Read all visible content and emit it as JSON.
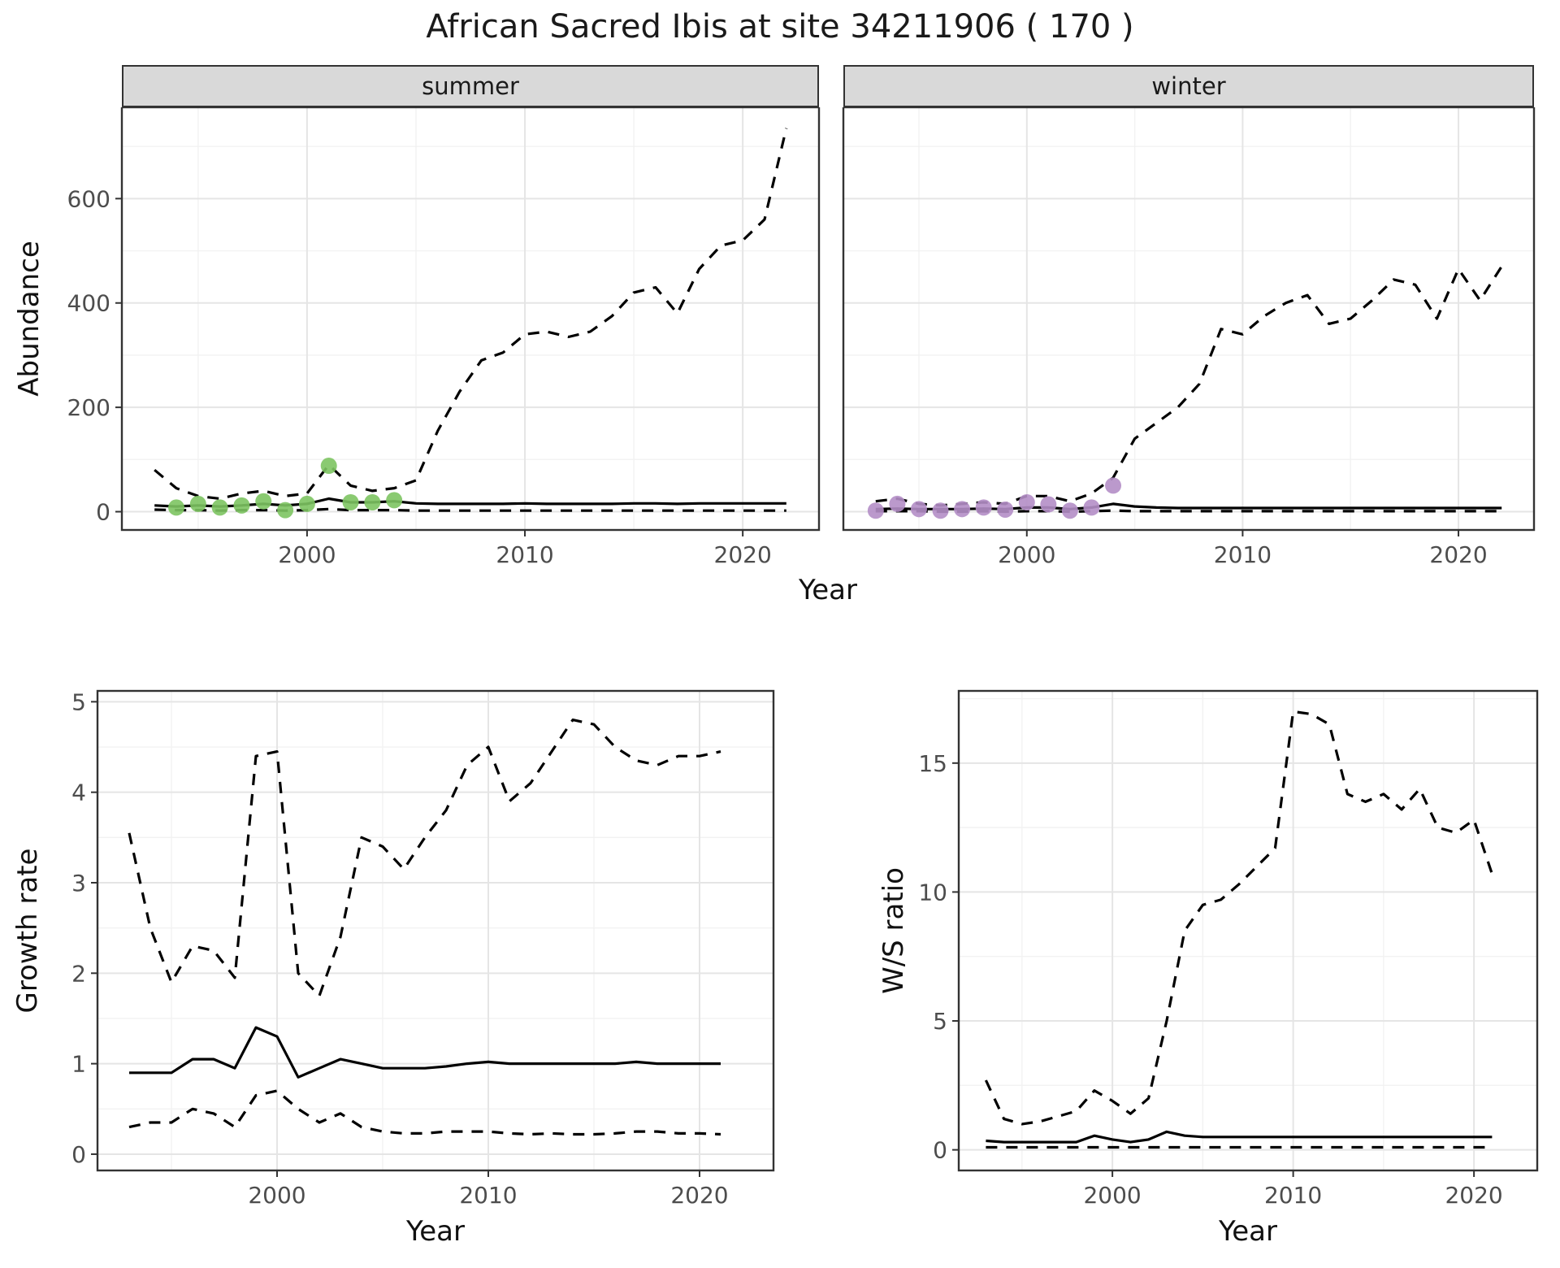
{
  "title": "African Sacred Ibis at site 34211906 ( 170 )",
  "colors": {
    "summer_points": "#7dc462",
    "winter_points": "#b48ec6",
    "line": "#000000",
    "strip_background": "#d9d9d9",
    "grid_major": "#e5e5e5",
    "grid_minor": "#f2f2f2"
  },
  "chart_data": [
    {
      "id": "abundance_summer",
      "type": "line",
      "facet": "summer",
      "xlabel": "Year",
      "ylabel": "Abundance",
      "xlim": [
        1991.5,
        2023.5
      ],
      "ylim": [
        -35,
        775
      ],
      "xticks": [
        2000,
        2010,
        2020
      ],
      "yticks": [
        0,
        200,
        400,
        600
      ],
      "show_y_labels": true,
      "x": [
        1993,
        1994,
        1995,
        1996,
        1997,
        1998,
        1999,
        2000,
        2001,
        2002,
        2003,
        2004,
        2005,
        2006,
        2007,
        2008,
        2009,
        2010,
        2011,
        2012,
        2013,
        2014,
        2015,
        2016,
        2017,
        2018,
        2019,
        2020,
        2021,
        2022
      ],
      "series": [
        {
          "name": "upper_95ci",
          "style": "dashed",
          "color": "#000000",
          "y": [
            80,
            45,
            30,
            25,
            35,
            40,
            30,
            35,
            90,
            50,
            40,
            45,
            60,
            155,
            230,
            290,
            305,
            340,
            345,
            335,
            345,
            375,
            420,
            430,
            380,
            465,
            510,
            520,
            560,
            735
          ]
        },
        {
          "name": "median",
          "style": "solid",
          "color": "#000000",
          "y": [
            12,
            10,
            12,
            10,
            12,
            15,
            12,
            15,
            25,
            18,
            18,
            20,
            16,
            15,
            15,
            15,
            15,
            16,
            15,
            15,
            15,
            15,
            16,
            16,
            15,
            16,
            16,
            16,
            16,
            16
          ]
        },
        {
          "name": "lower_95ci",
          "style": "dashed",
          "color": "#000000",
          "y": [
            4,
            3,
            3,
            2,
            3,
            3,
            2,
            3,
            5,
            3,
            3,
            3,
            2,
            2,
            2,
            2,
            2,
            2,
            2,
            2,
            2,
            2,
            2,
            2,
            2,
            2,
            2,
            2,
            2,
            2
          ]
        },
        {
          "name": "observed_counts",
          "type": "points",
          "color": "#7dc462",
          "x": [
            1994,
            1995,
            1996,
            1997,
            1998,
            1999,
            2000,
            2001,
            2002,
            2003,
            2004
          ],
          "y": [
            8,
            15,
            8,
            12,
            20,
            3,
            15,
            88,
            18,
            18,
            22
          ]
        }
      ]
    },
    {
      "id": "abundance_winter",
      "type": "line",
      "facet": "winter",
      "xlabel": "Year",
      "ylabel": "Abundance",
      "xlim": [
        1991.5,
        2023.5
      ],
      "ylim": [
        -35,
        775
      ],
      "xticks": [
        2000,
        2010,
        2020
      ],
      "yticks": [
        0,
        200,
        400,
        600
      ],
      "show_y_labels": false,
      "x": [
        1993,
        1994,
        1995,
        1996,
        1997,
        1998,
        1999,
        2000,
        2001,
        2002,
        2003,
        2004,
        2005,
        2006,
        2007,
        2008,
        2009,
        2010,
        2011,
        2012,
        2013,
        2014,
        2015,
        2016,
        2017,
        2018,
        2019,
        2020,
        2021,
        2022
      ],
      "series": [
        {
          "name": "upper_95ci",
          "style": "dashed",
          "color": "#000000",
          "y": [
            20,
            25,
            15,
            12,
            15,
            18,
            15,
            30,
            30,
            20,
            35,
            65,
            140,
            170,
            200,
            245,
            350,
            340,
            375,
            400,
            415,
            360,
            370,
            405,
            445,
            435,
            370,
            465,
            405,
            470
          ]
        },
        {
          "name": "median",
          "style": "solid",
          "color": "#000000",
          "y": [
            5,
            6,
            5,
            5,
            5,
            6,
            5,
            8,
            8,
            5,
            8,
            15,
            10,
            8,
            7,
            7,
            7,
            7,
            7,
            7,
            7,
            7,
            7,
            7,
            7,
            7,
            7,
            7,
            7,
            7
          ]
        },
        {
          "name": "lower_95ci",
          "style": "dashed",
          "color": "#000000",
          "y": [
            1,
            1,
            1,
            0,
            0,
            1,
            0,
            1,
            1,
            0,
            1,
            2,
            1,
            1,
            1,
            1,
            1,
            1,
            1,
            1,
            1,
            1,
            1,
            1,
            1,
            1,
            1,
            1,
            1,
            1
          ]
        },
        {
          "name": "observed_counts",
          "type": "points",
          "color": "#b48ec6",
          "x": [
            1993,
            1994,
            1995,
            1996,
            1997,
            1998,
            1999,
            2000,
            2001,
            2002,
            2003,
            2004
          ],
          "y": [
            2,
            15,
            5,
            2,
            5,
            8,
            4,
            18,
            14,
            2,
            8,
            50
          ]
        }
      ]
    },
    {
      "id": "growth_rate",
      "type": "line",
      "xlabel": "Year",
      "ylabel": "Growth rate",
      "xlim": [
        1991.5,
        2023.5
      ],
      "ylim": [
        -0.18,
        5.12
      ],
      "xticks": [
        2000,
        2010,
        2020
      ],
      "yticks": [
        0,
        1,
        2,
        3,
        4,
        5
      ],
      "show_y_labels": true,
      "x": [
        1993,
        1994,
        1995,
        1996,
        1997,
        1998,
        1999,
        2000,
        2001,
        2002,
        2003,
        2004,
        2005,
        2006,
        2007,
        2008,
        2009,
        2010,
        2011,
        2012,
        2013,
        2014,
        2015,
        2016,
        2017,
        2018,
        2019,
        2020,
        2021
      ],
      "series": [
        {
          "name": "upper_95ci",
          "style": "dashed",
          "color": "#000000",
          "y": [
            3.55,
            2.5,
            1.9,
            2.3,
            2.25,
            1.95,
            4.4,
            4.45,
            2.0,
            1.75,
            2.4,
            3.5,
            3.4,
            3.15,
            3.5,
            3.8,
            4.3,
            4.5,
            3.9,
            4.1,
            4.45,
            4.8,
            4.75,
            4.5,
            4.35,
            4.3,
            4.4,
            4.4,
            4.45
          ]
        },
        {
          "name": "median",
          "style": "solid",
          "color": "#000000",
          "y": [
            0.9,
            0.9,
            0.9,
            1.05,
            1.05,
            0.95,
            1.4,
            1.3,
            0.85,
            0.95,
            1.05,
            1.0,
            0.95,
            0.95,
            0.95,
            0.97,
            1.0,
            1.02,
            1.0,
            1.0,
            1.0,
            1.0,
            1.0,
            1.0,
            1.02,
            1.0,
            1.0,
            1.0,
            1.0
          ]
        },
        {
          "name": "lower_95ci",
          "style": "dashed",
          "color": "#000000",
          "y": [
            0.3,
            0.35,
            0.35,
            0.5,
            0.45,
            0.3,
            0.65,
            0.7,
            0.5,
            0.35,
            0.45,
            0.3,
            0.25,
            0.23,
            0.23,
            0.25,
            0.25,
            0.25,
            0.23,
            0.22,
            0.23,
            0.22,
            0.22,
            0.23,
            0.25,
            0.25,
            0.23,
            0.23,
            0.22
          ]
        }
      ]
    },
    {
      "id": "ws_ratio",
      "type": "line",
      "xlabel": "Year",
      "ylabel": "W/S ratio",
      "xlim": [
        1991.5,
        2023.5
      ],
      "ylim": [
        -0.8,
        17.8
      ],
      "xticks": [
        2000,
        2010,
        2020
      ],
      "yticks": [
        0,
        5,
        10,
        15
      ],
      "show_y_labels": true,
      "x": [
        1993,
        1994,
        1995,
        1996,
        1997,
        1998,
        1999,
        2000,
        2001,
        2002,
        2003,
        2004,
        2005,
        2006,
        2007,
        2008,
        2009,
        2010,
        2011,
        2012,
        2013,
        2014,
        2015,
        2016,
        2017,
        2018,
        2019,
        2020,
        2021
      ],
      "series": [
        {
          "name": "upper_95ci",
          "style": "dashed",
          "color": "#000000",
          "y": [
            2.7,
            1.2,
            1.0,
            1.1,
            1.3,
            1.5,
            2.3,
            1.9,
            1.4,
            2.0,
            5.0,
            8.5,
            9.5,
            9.7,
            10.3,
            11.0,
            11.7,
            17.0,
            16.9,
            16.5,
            13.8,
            13.5,
            13.8,
            13.2,
            14.0,
            12.5,
            12.3,
            12.8,
            10.7
          ]
        },
        {
          "name": "median",
          "style": "solid",
          "color": "#000000",
          "y": [
            0.35,
            0.3,
            0.3,
            0.3,
            0.3,
            0.3,
            0.55,
            0.4,
            0.3,
            0.4,
            0.7,
            0.55,
            0.5,
            0.5,
            0.5,
            0.5,
            0.5,
            0.5,
            0.5,
            0.5,
            0.5,
            0.5,
            0.5,
            0.5,
            0.5,
            0.5,
            0.5,
            0.5,
            0.5
          ]
        },
        {
          "name": "lower_95ci",
          "style": "dashed",
          "color": "#000000",
          "y": [
            0.1,
            0.1,
            0.1,
            0.1,
            0.1,
            0.1,
            0.1,
            0.1,
            0.1,
            0.1,
            0.1,
            0.1,
            0.1,
            0.1,
            0.1,
            0.1,
            0.1,
            0.1,
            0.1,
            0.1,
            0.1,
            0.1,
            0.1,
            0.1,
            0.1,
            0.1,
            0.1,
            0.1,
            0.1
          ]
        }
      ]
    }
  ]
}
